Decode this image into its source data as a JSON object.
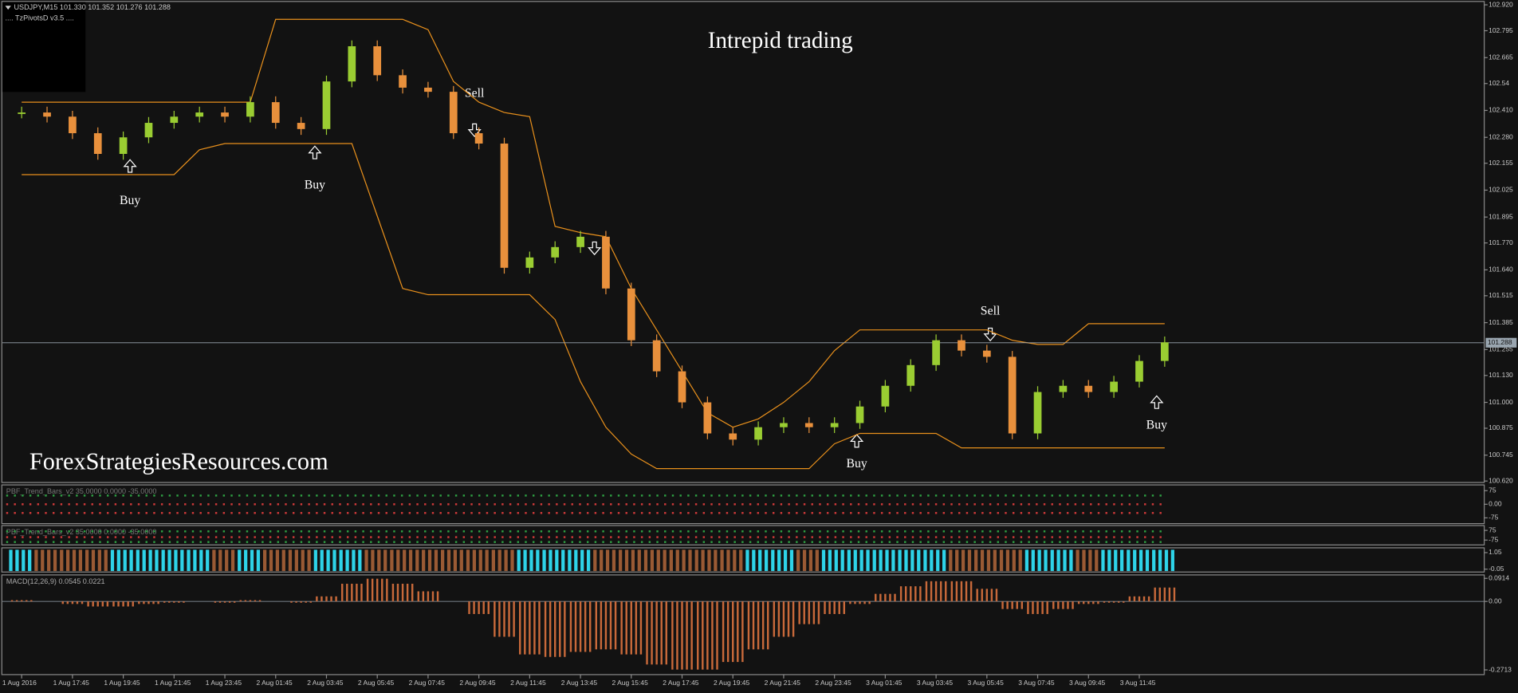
{
  "chart_data": {
    "type": "candlestick",
    "title": "Intrepid trading",
    "watermark": "ForexStrategiesResources.com",
    "symbol_info": "USDJPY,M15  101.330 101.352 101.276 101.288",
    "indicator_label": ".... TzPivotsD v3.5 ....",
    "signals": [
      "Buy",
      "Buy",
      "Sell",
      "Buy",
      "Sell",
      "Buy"
    ],
    "categories": [
      "1 Aug 2016",
      null,
      "1 Aug 17:45",
      null,
      "1 Aug 19:45",
      null,
      "1 Aug 21:45",
      null,
      "1 Aug 23:45",
      null,
      "2 Aug 01:45",
      null,
      "2 Aug 03:45",
      null,
      "2 Aug 05:45",
      null,
      "2 Aug 07:45",
      null,
      "2 Aug 09:45",
      null,
      "2 Aug 11:45",
      null,
      "2 Aug 13:45",
      null,
      "2 Aug 15:45",
      null,
      "2 Aug 17:45",
      null,
      "2 Aug 19:45",
      null,
      "2 Aug 21:45",
      null,
      "2 Aug 23:45",
      null,
      "3 Aug 01:45",
      null,
      "3 Aug 03:45",
      null,
      "3 Aug 05:45",
      null,
      "3 Aug 07:45",
      null,
      "3 Aug 09:45",
      null,
      "3 Aug 11:45",
      null
    ],
    "values": [
      102.4,
      102.38,
      102.3,
      102.2,
      102.28,
      102.35,
      102.38,
      102.4,
      102.38,
      102.45,
      102.35,
      102.32,
      102.55,
      102.72,
      102.58,
      102.52,
      102.5,
      102.3,
      102.25,
      101.65,
      101.7,
      101.75,
      101.8,
      101.55,
      101.3,
      101.15,
      101.0,
      100.85,
      100.82,
      100.88,
      100.9,
      100.88,
      100.9,
      100.98,
      101.08,
      101.18,
      101.3,
      101.25,
      101.22,
      100.85,
      101.05,
      101.08,
      101.05,
      101.1,
      101.2,
      101.29
    ],
    "upper_band": [
      102.45,
      102.45,
      102.45,
      102.45,
      102.45,
      102.45,
      102.45,
      102.45,
      102.45,
      102.45,
      102.85,
      102.85,
      102.85,
      102.85,
      102.85,
      102.85,
      102.8,
      102.55,
      102.45,
      102.4,
      102.38,
      101.85,
      101.82,
      101.8,
      101.55,
      101.35,
      101.15,
      100.95,
      100.88,
      100.92,
      101.0,
      101.1,
      101.25,
      101.35,
      101.35,
      101.35,
      101.35,
      101.35,
      101.35,
      101.3,
      101.28,
      101.28,
      101.38,
      101.38,
      101.38,
      101.38
    ],
    "lower_band": [
      102.1,
      102.1,
      102.1,
      102.1,
      102.1,
      102.1,
      102.1,
      102.22,
      102.25,
      102.25,
      102.25,
      102.25,
      102.25,
      102.25,
      101.9,
      101.55,
      101.52,
      101.52,
      101.52,
      101.52,
      101.52,
      101.4,
      101.1,
      100.88,
      100.75,
      100.68,
      100.68,
      100.68,
      100.68,
      100.68,
      100.68,
      100.68,
      100.8,
      100.85,
      100.85,
      100.85,
      100.85,
      100.78,
      100.78,
      100.78,
      100.78,
      100.78,
      100.78,
      100.78,
      100.78,
      100.78
    ],
    "current_price": 101.288,
    "ylim": [
      100.62,
      102.92
    ],
    "yticks": [
      {
        "value": 102.92,
        "label": "102.920"
      },
      102.795,
      102.665,
      102.54,
      {
        "value": 102.41,
        "label": "102.410"
      },
      {
        "value": 102.28,
        "label": "102.280"
      },
      102.155,
      102.025,
      101.895,
      {
        "value": 101.77,
        "label": "101.770"
      },
      {
        "value": 101.64,
        "label": "101.640"
      },
      101.515,
      101.385,
      101.255,
      {
        "value": 101.13,
        "label": "101.130"
      },
      {
        "value": 101.0,
        "label": "101.000"
      },
      100.875,
      100.745,
      {
        "value": 100.62,
        "label": "100.620"
      }
    ],
    "panels": [
      {
        "title": "PBF_Trend_Bars_v2 35.0000 0.0000 -35.0000",
        "ylim": [
          -107,
          107
        ],
        "yticks": [
          75,
          {
            "value": 0,
            "label": "0.00"
          },
          -75
        ]
      },
      {
        "title": "PBF_Trend_Bars_v2 35.0000 0.0000 -35.0000",
        "ylim": [
          -150,
          150
        ],
        "yticks": [
          75,
          -75
        ]
      },
      {
        "ylim": [
          -0.24,
          1.37
        ],
        "yticks": [
          1.05,
          -0.05
        ]
      }
    ],
    "macd": {
      "title": "MACD(12,26,9) 0.0545 0.0221",
      "values": [
        0.005,
        0.0,
        -0.01,
        -0.02,
        -0.02,
        -0.01,
        -0.005,
        0.0,
        -0.005,
        0.005,
        0.0,
        -0.005,
        0.02,
        0.07,
        0.09,
        0.07,
        0.04,
        0.0,
        -0.05,
        -0.14,
        -0.21,
        -0.22,
        -0.2,
        -0.19,
        -0.21,
        -0.25,
        -0.27,
        -0.27,
        -0.24,
        -0.19,
        -0.14,
        -0.09,
        -0.05,
        -0.01,
        0.03,
        0.06,
        0.08,
        0.08,
        0.05,
        -0.03,
        -0.05,
        -0.03,
        -0.01,
        -0.005,
        0.02,
        0.055
      ],
      "ylim": [
        -0.29,
        0.105
      ],
      "yticks": [
        0.0914,
        {
          "value": 0,
          "label": "0.00"
        },
        -0.2713
      ]
    }
  }
}
